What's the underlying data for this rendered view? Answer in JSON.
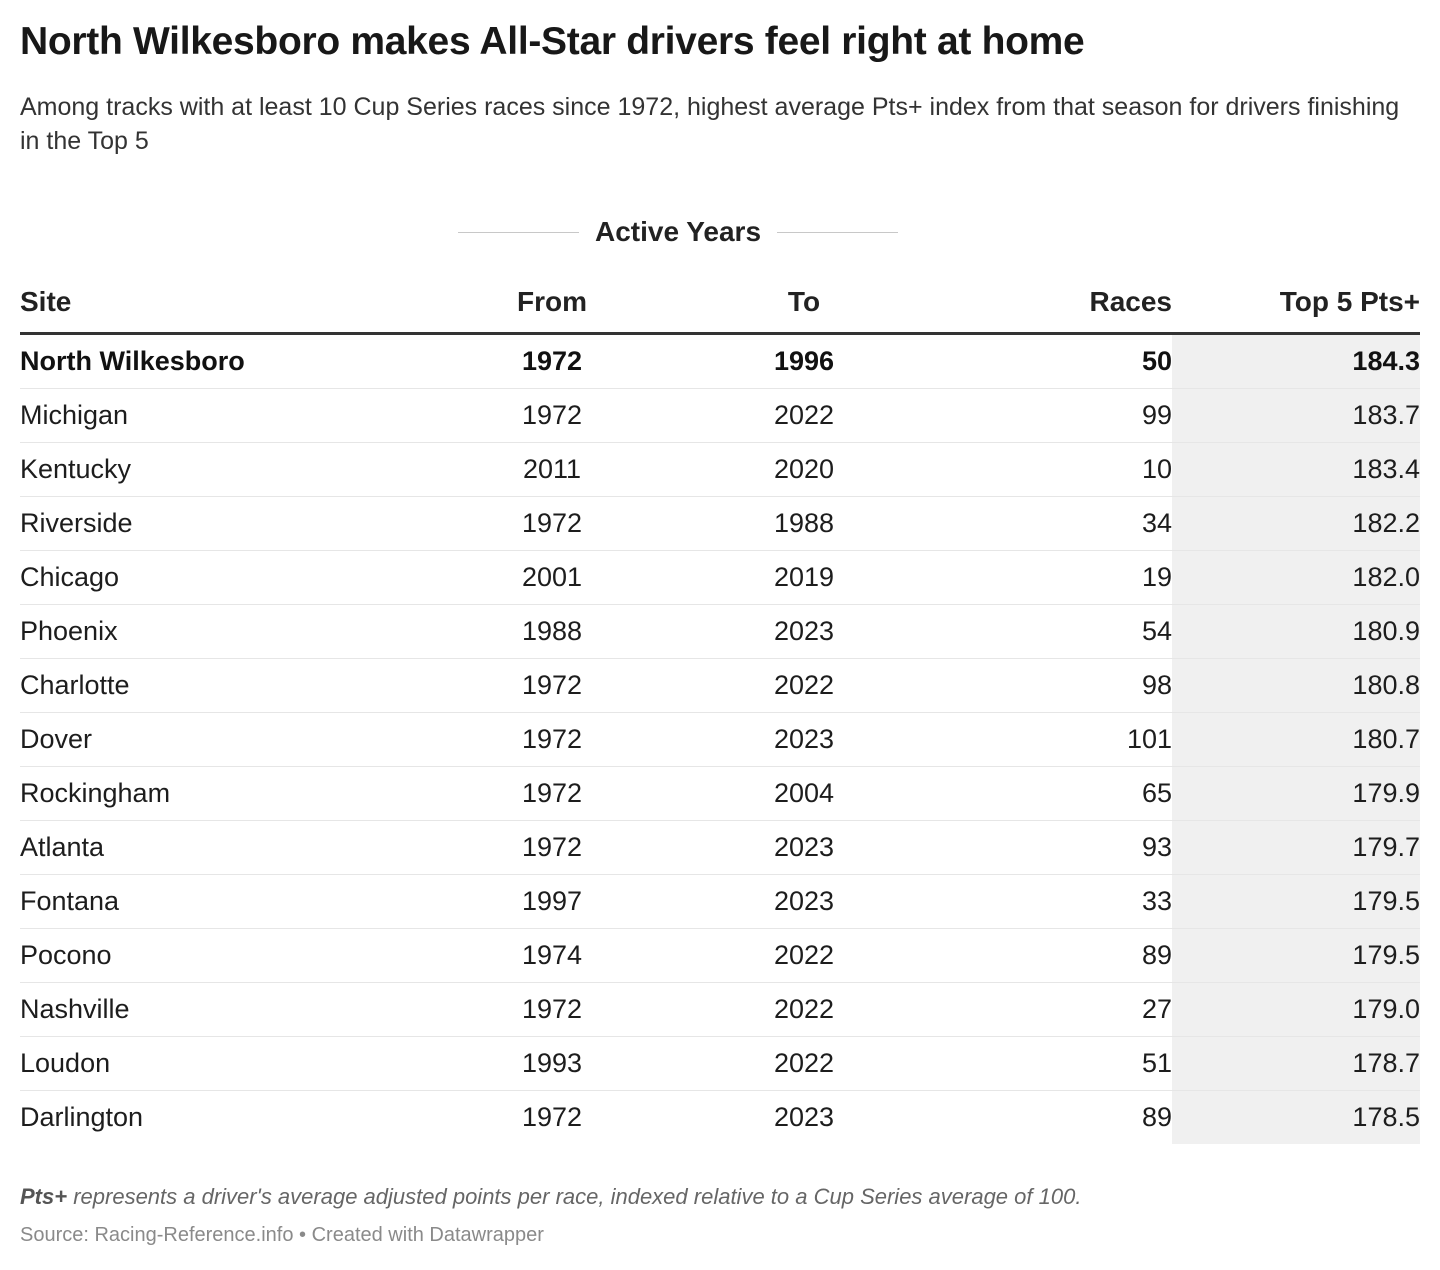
{
  "title": "North Wilkesboro makes All-Star drivers feel right at home",
  "subtitle": "Among tracks with at least 10 Cup Series races since 1972, highest average Pts+ index from that season for drivers finishing in the Top 5",
  "group_header": "Active Years",
  "colors": {
    "highlight_column_bg": "#f0f0f0",
    "header_rule": "#333333",
    "row_divider": "#e6e6e6"
  },
  "chart_data": {
    "type": "table",
    "columns": [
      "Site",
      "From",
      "To",
      "Races",
      "Top 5 Pts+"
    ],
    "highlighted_row": "North Wilkesboro",
    "rows": [
      {
        "site": "North Wilkesboro",
        "from": "1972",
        "to": "1996",
        "races": "50",
        "pts": "184.3"
      },
      {
        "site": "Michigan",
        "from": "1972",
        "to": "2022",
        "races": "99",
        "pts": "183.7"
      },
      {
        "site": "Kentucky",
        "from": "2011",
        "to": "2020",
        "races": "10",
        "pts": "183.4"
      },
      {
        "site": "Riverside",
        "from": "1972",
        "to": "1988",
        "races": "34",
        "pts": "182.2"
      },
      {
        "site": "Chicago",
        "from": "2001",
        "to": "2019",
        "races": "19",
        "pts": "182.0"
      },
      {
        "site": "Phoenix",
        "from": "1988",
        "to": "2023",
        "races": "54",
        "pts": "180.9"
      },
      {
        "site": "Charlotte",
        "from": "1972",
        "to": "2022",
        "races": "98",
        "pts": "180.8"
      },
      {
        "site": "Dover",
        "from": "1972",
        "to": "2023",
        "races": "101",
        "pts": "180.7"
      },
      {
        "site": "Rockingham",
        "from": "1972",
        "to": "2004",
        "races": "65",
        "pts": "179.9"
      },
      {
        "site": "Atlanta",
        "from": "1972",
        "to": "2023",
        "races": "93",
        "pts": "179.7"
      },
      {
        "site": "Fontana",
        "from": "1997",
        "to": "2023",
        "races": "33",
        "pts": "179.5"
      },
      {
        "site": "Pocono",
        "from": "1974",
        "to": "2022",
        "races": "89",
        "pts": "179.5"
      },
      {
        "site": "Nashville",
        "from": "1972",
        "to": "2022",
        "races": "27",
        "pts": "179.0"
      },
      {
        "site": "Loudon",
        "from": "1993",
        "to": "2022",
        "races": "51",
        "pts": "178.7"
      },
      {
        "site": "Darlington",
        "from": "1972",
        "to": "2023",
        "races": "89",
        "pts": "178.5"
      }
    ]
  },
  "footnote": {
    "term": "Pts+",
    "text": " represents a driver's average adjusted points per race, indexed relative to a Cup Series average of 100."
  },
  "source": "Source: Racing-Reference.info • Created with Datawrapper"
}
